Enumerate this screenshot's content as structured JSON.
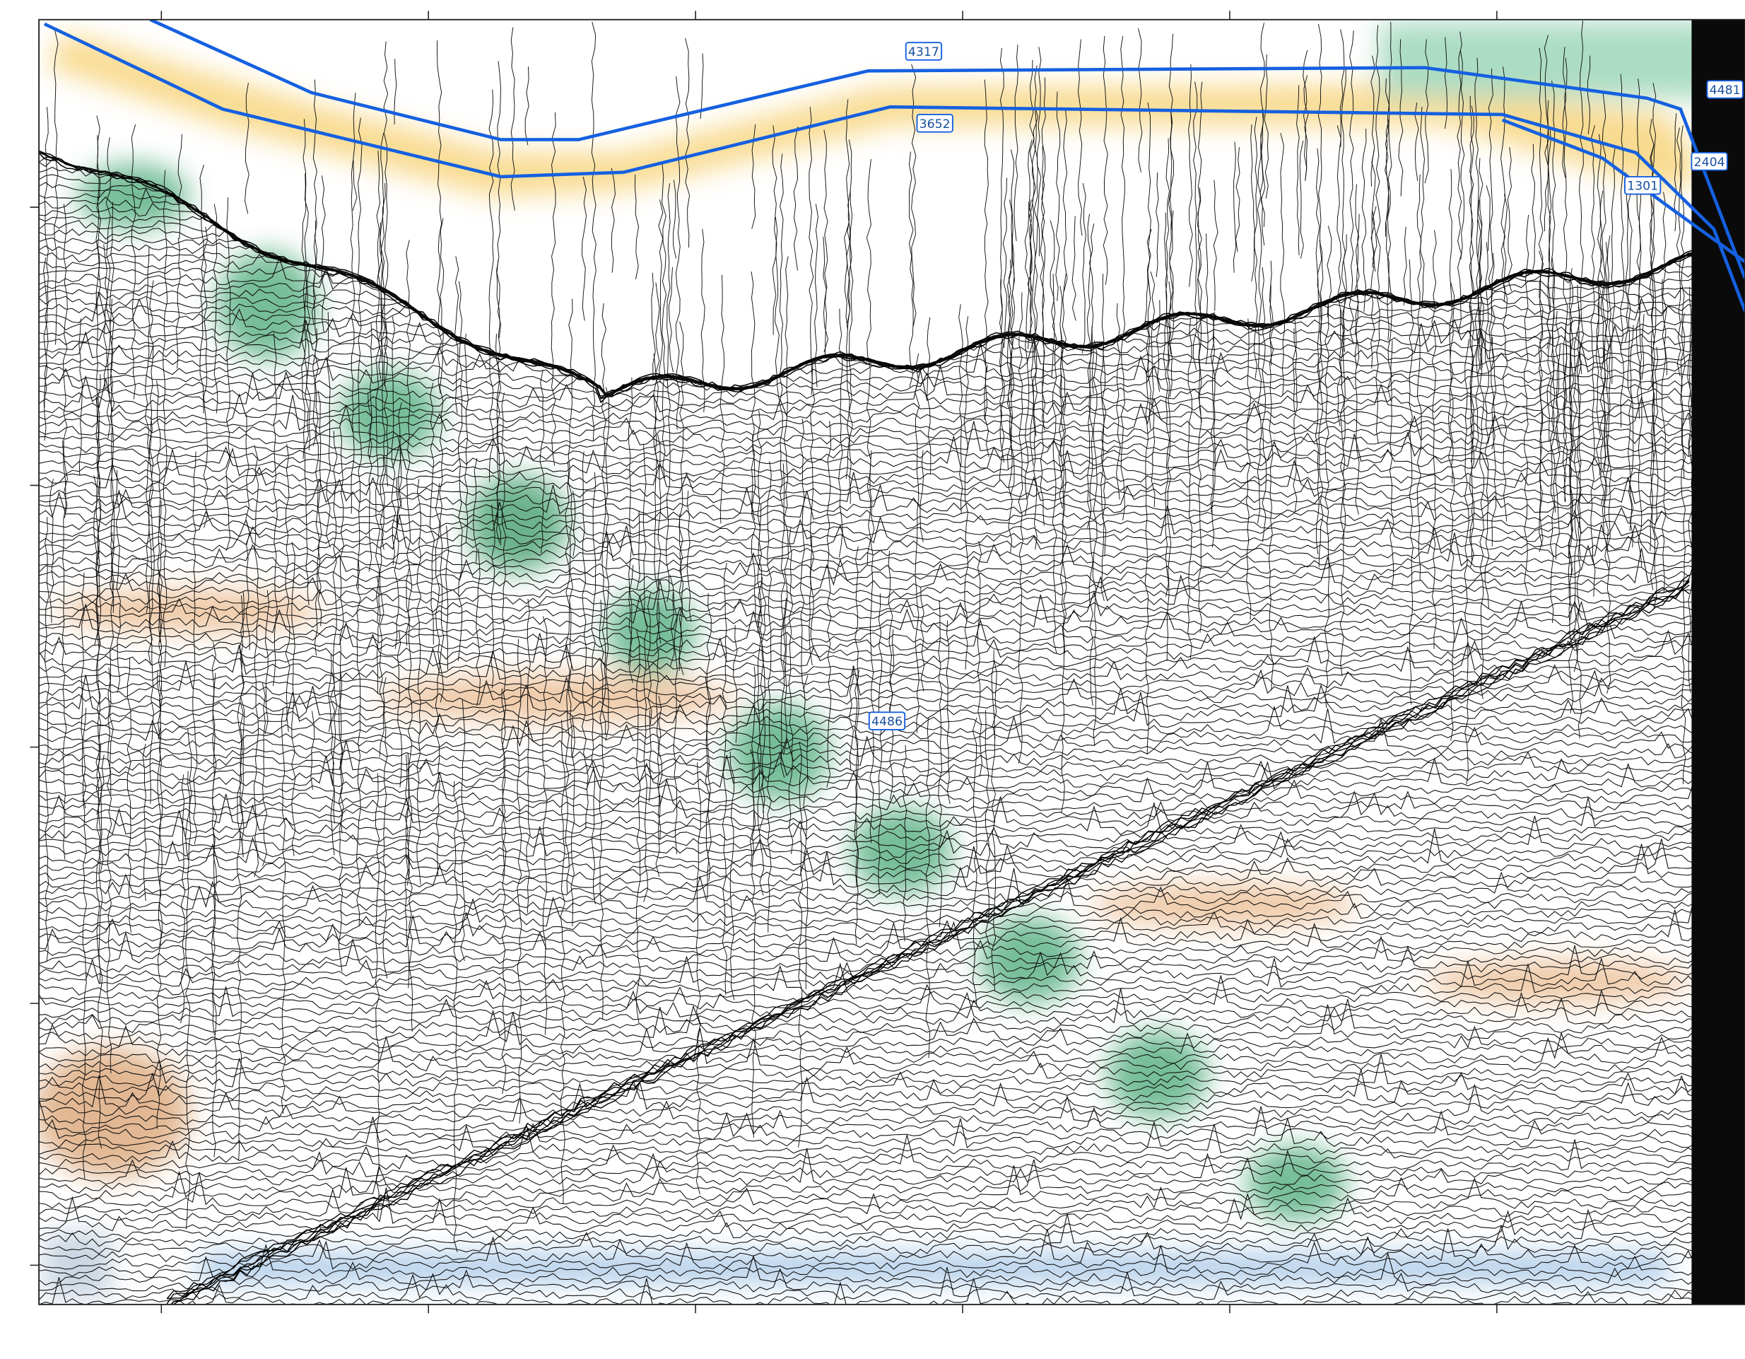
{
  "profile": {
    "horizon_labels": [
      "4317",
      "3652",
      "4481",
      "2404",
      "1301",
      "4486"
    ]
  }
}
